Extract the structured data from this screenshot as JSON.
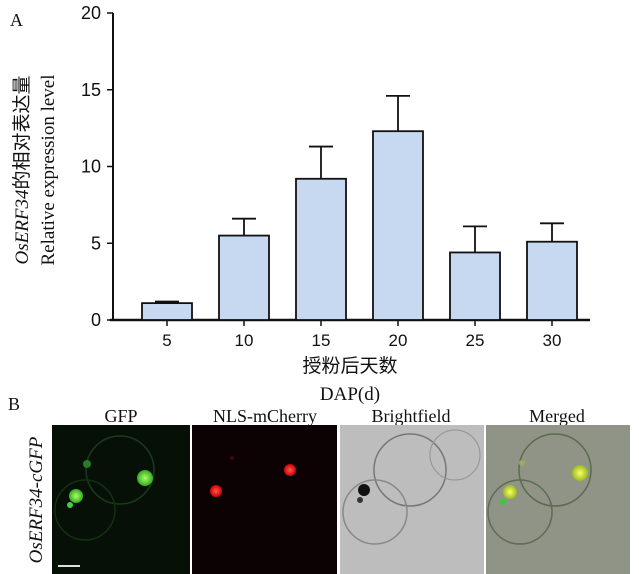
{
  "chart_data": {
    "type": "bar",
    "panel_label": "A",
    "categories": [
      "5",
      "10",
      "15",
      "20",
      "25",
      "30"
    ],
    "values": [
      1.1,
      5.5,
      9.2,
      12.3,
      4.4,
      5.1
    ],
    "error_upper": [
      1.2,
      6.6,
      11.3,
      14.6,
      6.1,
      6.3
    ],
    "ylim": [
      0,
      20
    ],
    "yticks": [
      "0",
      "5",
      "10",
      "15",
      "20"
    ],
    "ylabel_cn_gene": "OsERF34",
    "ylabel_cn_rest": "的相对表达量",
    "ylabel_en": "Relative expression level",
    "xlabel_cn": "授粉后天数",
    "xlabel_en": "DAP(d)",
    "bar_color": "#c6d9f0",
    "grid": false
  },
  "panel_b": {
    "label": "B",
    "row_label": "OsERF34-cGFP",
    "columns": [
      "GFP",
      "NLS-mCherry",
      "Brightfield",
      "Merged"
    ]
  }
}
